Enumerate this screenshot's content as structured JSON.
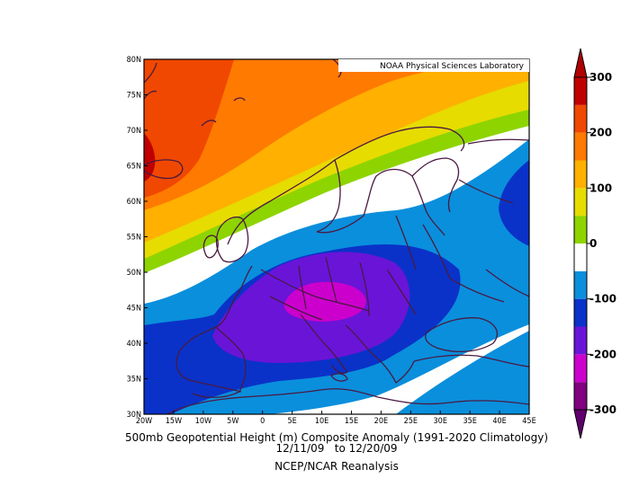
{
  "map": {
    "credit": "NOAA Physical Sciences Laboratory",
    "lon_range": [
      -20,
      45
    ],
    "lat_range": [
      30,
      80
    ],
    "x_ticks": [
      "20W",
      "15W",
      "10W",
      "5W",
      "0",
      "5E",
      "10E",
      "15E",
      "20E",
      "25E",
      "30E",
      "35E",
      "40E",
      "45E"
    ],
    "y_ticks": [
      "30N",
      "35N",
      "40N",
      "45N",
      "50N",
      "55N",
      "60N",
      "65N",
      "70N",
      "75N",
      "80N"
    ],
    "title": "500mb Geopotential Height (m) Composite Anomaly (1991-2020 Climatology)",
    "dates": "12/11/09   to 12/20/09",
    "source": "NCEP/NCAR Reanalysis"
  },
  "colorbar": {
    "labels": [
      "300",
      "200",
      "100",
      "0",
      "-100",
      "-200",
      "-300"
    ],
    "levels": [
      -300,
      -250,
      -200,
      -150,
      -100,
      -50,
      0,
      50,
      100,
      150,
      200,
      250,
      300
    ],
    "colors": [
      "#800080",
      "#cc00cc",
      "#6a14d8",
      "#0a32c8",
      "#0a8fdc",
      "#ffffff",
      "#8ed400",
      "#e6dc00",
      "#ffb000",
      "#ff7a00",
      "#f04800",
      "#c00000"
    ],
    "under_color": "#60006e",
    "over_color": "#b00000"
  },
  "colors": {
    "coast": "#4a1a42",
    "frame": "#000000"
  }
}
